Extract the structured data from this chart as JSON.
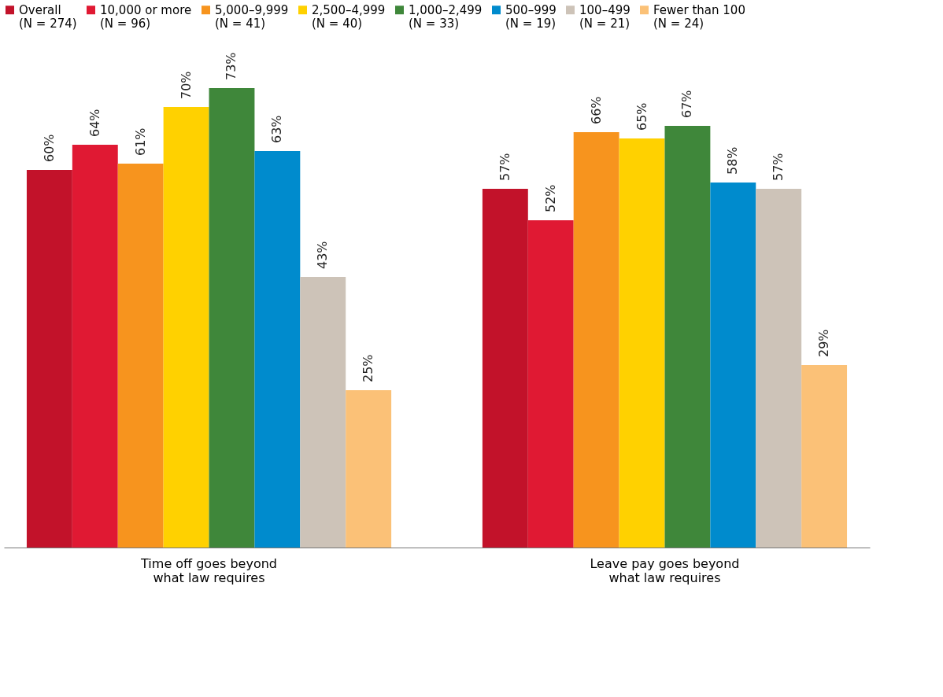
{
  "chart_data": {
    "type": "bar",
    "categories": [
      "Time off goes beyond what law requires",
      "Leave pay goes beyond what law requires"
    ],
    "legend": "top",
    "grid": false,
    "series": [
      {
        "name": "Overall (N = 274)",
        "color": "#c2122a",
        "values": [
          60,
          57
        ],
        "value_labels": [
          "60%",
          "57%"
        ]
      },
      {
        "name": "10,000 or more (N = 96)",
        "color": "#e01933",
        "values": [
          64,
          52
        ],
        "value_labels": [
          "64%",
          "52%"
        ]
      },
      {
        "name": "5,000–9,999 (N = 41)",
        "color": "#f7941e",
        "values": [
          61,
          66
        ],
        "value_labels": [
          "61%",
          "66%"
        ]
      },
      {
        "name": "2,500–4,999 (N = 40)",
        "color": "#ffd100",
        "values": [
          70,
          65
        ],
        "value_labels": [
          "70%",
          "65%"
        ]
      },
      {
        "name": "1,000–2,499 (N = 33)",
        "color": "#3f873a",
        "values": [
          73,
          67
        ],
        "value_labels": [
          "73%",
          "67%"
        ]
      },
      {
        "name": "500–999 (N = 19)",
        "color": "#008bcd",
        "values": [
          63,
          58
        ],
        "value_labels": [
          "63%",
          "58%"
        ]
      },
      {
        "name": "100–499 (N = 21)",
        "color": "#cdc3b8",
        "values": [
          43,
          57
        ],
        "value_labels": [
          "43%",
          "57%"
        ]
      },
      {
        "name": "Fewer than 100 (N = 24)",
        "color": "#fbc177",
        "values": [
          25,
          29
        ],
        "value_labels": [
          "25%",
          "29%"
        ]
      }
    ]
  }
}
